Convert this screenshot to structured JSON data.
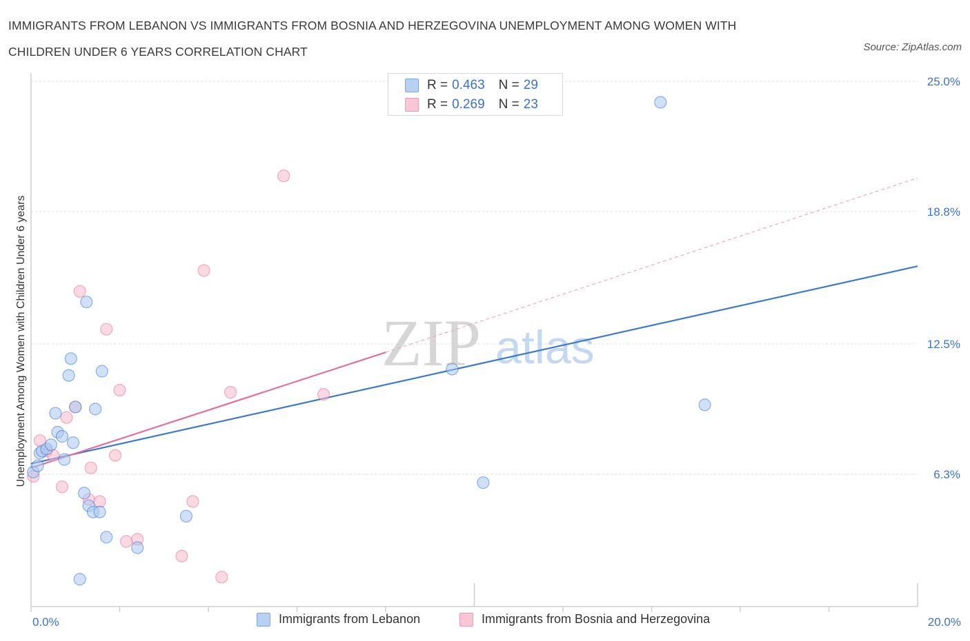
{
  "header": {
    "title_line1": "IMMIGRANTS FROM LEBANON VS IMMIGRANTS FROM BOSNIA AND HERZEGOVINA UNEMPLOYMENT AMONG WOMEN WITH",
    "title_line2": "CHILDREN UNDER 6 YEARS CORRELATION CHART",
    "source": "Source: ZipAtlas.com"
  },
  "stats": {
    "row1": {
      "r_label": "R =",
      "r_value": "0.463",
      "n_label": "N =",
      "n_value": "29"
    },
    "row2": {
      "r_label": "R =",
      "r_value": "0.269",
      "n_label": "N =",
      "n_value": "23"
    }
  },
  "watermark": {
    "zip": "ZIP",
    "atlas": "atlas"
  },
  "colors": {
    "lebanon": "#3a78d2",
    "bosnia": "#e56f9a",
    "axis_text": "#3a72cc"
  },
  "chart_data": {
    "type": "scatter",
    "title": "IMMIGRANTS FROM LEBANON VS IMMIGRANTS FROM BOSNIA AND HERZEGOVINA UNEMPLOYMENT AMONG WOMEN WITH CHILDREN UNDER 6 YEARS CORRELATION CHART",
    "xlabel": "",
    "ylabel": "Unemployment Among Women with Children Under 6 years",
    "xlim": [
      0,
      20
    ],
    "ylim": [
      0,
      25
    ],
    "x_tick_labels": [
      {
        "value": 0,
        "label": "0.0%"
      },
      {
        "value": 20,
        "label": "20.0%"
      }
    ],
    "y_ticks": [
      {
        "value": 6.3,
        "label": "6.3%"
      },
      {
        "value": 12.5,
        "label": "12.5%"
      },
      {
        "value": 18.8,
        "label": "18.8%"
      },
      {
        "value": 25.0,
        "label": "25.0%"
      }
    ],
    "grid": "horizontal dashed",
    "legend_position": "bottom-center",
    "series": [
      {
        "name": "Immigrants from Lebanon",
        "color": "#3a78d2",
        "fill": "#a9c6f1",
        "points": [
          [
            0.05,
            6.4
          ],
          [
            0.15,
            6.7
          ],
          [
            0.2,
            7.3
          ],
          [
            0.25,
            7.4
          ],
          [
            0.35,
            7.5
          ],
          [
            0.45,
            7.7
          ],
          [
            0.55,
            9.2
          ],
          [
            0.6,
            8.3
          ],
          [
            0.7,
            8.1
          ],
          [
            0.75,
            7.0
          ],
          [
            0.85,
            11.0
          ],
          [
            0.9,
            11.8
          ],
          [
            0.95,
            7.8
          ],
          [
            1.0,
            9.5
          ],
          [
            1.1,
            1.3
          ],
          [
            1.2,
            5.4
          ],
          [
            1.25,
            14.5
          ],
          [
            1.3,
            4.8
          ],
          [
            1.4,
            4.5
          ],
          [
            1.45,
            9.4
          ],
          [
            1.55,
            4.5
          ],
          [
            1.6,
            11.2
          ],
          [
            1.7,
            3.3
          ],
          [
            2.4,
            2.8
          ],
          [
            3.5,
            4.3
          ],
          [
            9.5,
            11.3
          ],
          [
            10.2,
            5.9
          ],
          [
            14.2,
            24.0
          ],
          [
            15.2,
            9.6
          ]
        ],
        "trend": {
          "x0": 0,
          "y0": 6.8,
          "x1": 20,
          "y1": 16.2
        }
      },
      {
        "name": "Immigrants from Bosnia and Herzegovina",
        "color": "#e56f9a",
        "fill": "#f6b9cc",
        "points": [
          [
            0.05,
            6.2
          ],
          [
            0.2,
            7.9
          ],
          [
            0.35,
            7.4
          ],
          [
            0.5,
            7.2
          ],
          [
            0.7,
            5.7
          ],
          [
            0.8,
            9.0
          ],
          [
            1.0,
            9.5
          ],
          [
            1.1,
            15.0
          ],
          [
            1.3,
            5.1
          ],
          [
            1.35,
            6.6
          ],
          [
            1.55,
            5.0
          ],
          [
            1.7,
            13.2
          ],
          [
            1.9,
            7.2
          ],
          [
            2.0,
            10.3
          ],
          [
            2.15,
            3.1
          ],
          [
            2.4,
            3.2
          ],
          [
            3.4,
            2.4
          ],
          [
            3.65,
            5.0
          ],
          [
            3.9,
            16.0
          ],
          [
            4.3,
            1.4
          ],
          [
            4.5,
            10.2
          ],
          [
            5.7,
            20.5
          ],
          [
            6.6,
            10.1
          ]
        ],
        "trend": {
          "x0": 0,
          "y0": 6.6,
          "x1": 8,
          "y1": 12.1
        },
        "trend_extension": {
          "x0": 8,
          "y0": 12.1,
          "x1": 20,
          "y1": 20.4
        }
      }
    ]
  }
}
